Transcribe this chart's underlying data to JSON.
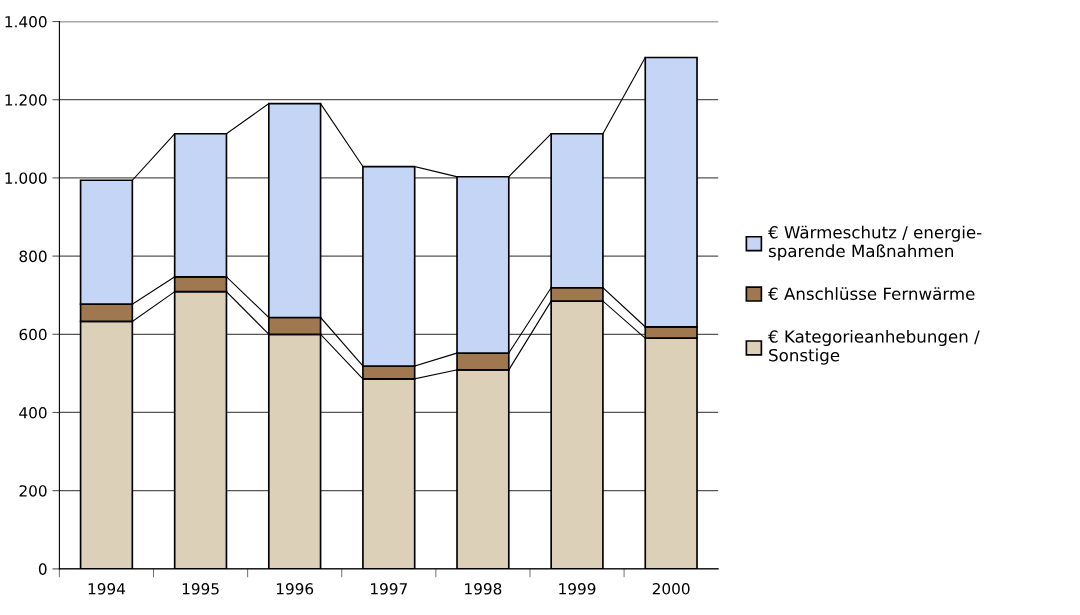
{
  "chart_data": {
    "type": "bar",
    "stacked": true,
    "categories": [
      "1994",
      "1995",
      "1996",
      "1997",
      "1998",
      "1999",
      "2000"
    ],
    "series": [
      {
        "name": "€ Kategorieanhebungen /\nSonstige",
        "color": "#ddd0b8",
        "values": [
          633,
          709,
          600,
          486,
          509,
          685,
          590
        ]
      },
      {
        "name": "€ Anschlüsse Fernwärme",
        "color": "#a07850",
        "values": [
          44,
          38,
          43,
          33,
          43,
          34,
          29
        ]
      },
      {
        "name": "€ Wärmeschutz / energie-\nsparende Maßnahmen",
        "color": "#c5d5f5",
        "values": [
          317,
          366,
          547,
          510,
          451,
          394,
          689
        ]
      }
    ],
    "ylim": [
      0,
      1400
    ],
    "yticks": [
      0,
      200,
      400,
      600,
      800,
      {
        "value": 1000,
        "label": "1.000"
      },
      {
        "value": 1200,
        "label": "1.200"
      },
      {
        "value": 1400,
        "label": "1.400"
      }
    ],
    "grid": "y",
    "legend": "right"
  }
}
